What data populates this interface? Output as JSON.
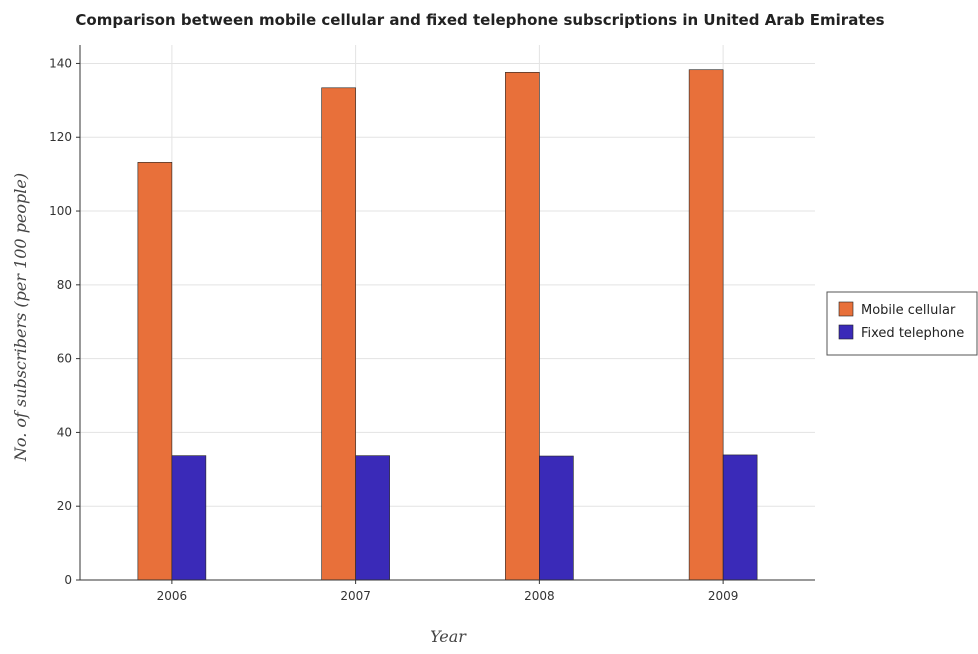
{
  "chart_data": {
    "type": "bar",
    "title": "Comparison between mobile cellular and fixed telephone subscriptions in United Arab Emirates",
    "xlabel": "Year",
    "ylabel": "No. of subscribers (per 100 people)",
    "categories": [
      "2006",
      "2007",
      "2008",
      "2009"
    ],
    "series": [
      {
        "name": "Mobile cellular",
        "color": "#e8703a",
        "values": [
          113.2,
          133.4,
          137.6,
          138.3
        ]
      },
      {
        "name": "Fixed telephone",
        "color": "#3a2ab8",
        "values": [
          33.7,
          33.7,
          33.6,
          33.9
        ]
      }
    ],
    "ylim": [
      0,
      145
    ],
    "yticks": [
      "0",
      "20",
      "40",
      "60",
      "80",
      "100",
      "120",
      "140"
    ],
    "grid": true,
    "legend_position": "right"
  }
}
